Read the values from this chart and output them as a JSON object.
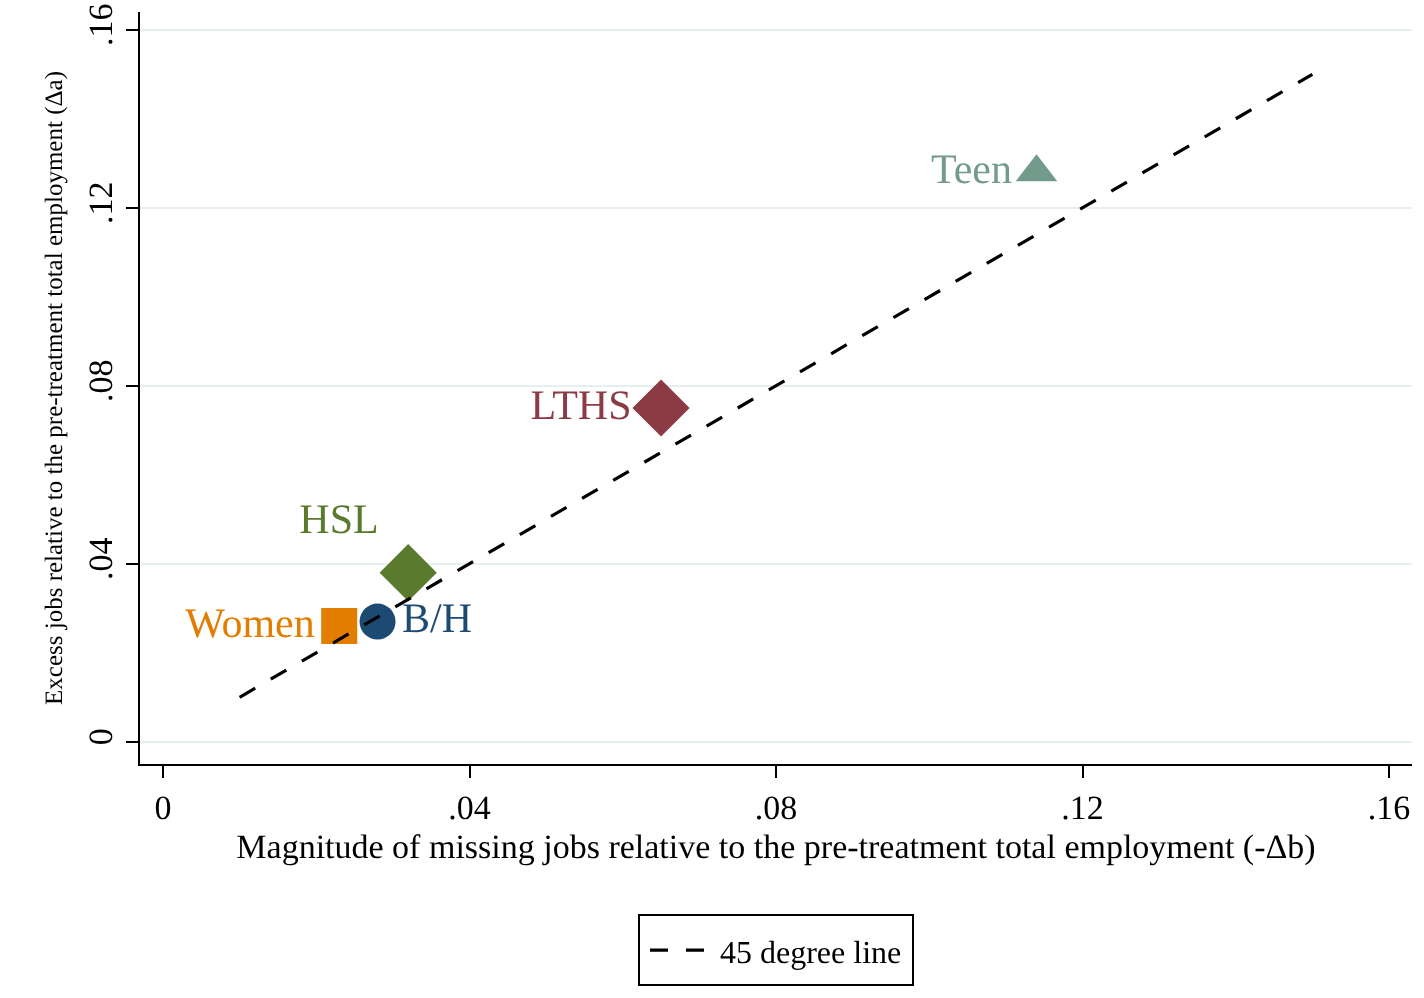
{
  "chart_data": {
    "type": "scatter",
    "xlabel": "Magnitude of missing jobs relative to the pre-treatment total employment (-Δb)",
    "ylabel": "Excess jobs relative to the pre-treatment total employment (Δa)",
    "xlim": [
      -0.003,
      0.163
    ],
    "ylim": [
      -0.005,
      0.164
    ],
    "xticks": [
      0,
      {
        "value": 0.04,
        "label": ".04"
      },
      {
        "value": 0.08,
        "label": ".08"
      },
      {
        "value": 0.12,
        "label": ".12"
      },
      {
        "value": 0.16,
        "label": ".16"
      }
    ],
    "yticks": [
      0,
      {
        "value": 0.04,
        "label": ".04"
      },
      {
        "value": 0.08,
        "label": ".08"
      },
      {
        "value": 0.12,
        "label": ".12"
      },
      {
        "value": 0.16,
        "label": ".16"
      }
    ],
    "grid": "y",
    "legend": "bottom",
    "series": [
      {
        "name": "Teen",
        "color": "#739b8c",
        "marker": "triangle",
        "x": [
          0.114
        ],
        "values": [
          0.128
        ]
      },
      {
        "name": "LTHS",
        "color": "#8c3a44",
        "marker": "diamond",
        "x": [
          0.065
        ],
        "values": [
          0.075
        ]
      },
      {
        "name": "HSL",
        "color": "#5a7a2e",
        "marker": "diamond",
        "x": [
          0.032
        ],
        "values": [
          0.038
        ]
      },
      {
        "name": "B/H",
        "color": "#1c4a73",
        "marker": "circle",
        "x": [
          0.028
        ],
        "values": [
          0.027
        ]
      },
      {
        "name": "Women",
        "color": "#e37d00",
        "marker": "square",
        "x": [
          0.023
        ],
        "values": [
          0.026
        ]
      },
      {
        "name": "45 degree line",
        "type": "line",
        "color": "#000000",
        "marker": "none",
        "line_style": "dashed",
        "x": [
          0.01,
          0.15
        ],
        "values": [
          0.01,
          0.15
        ]
      }
    ]
  }
}
